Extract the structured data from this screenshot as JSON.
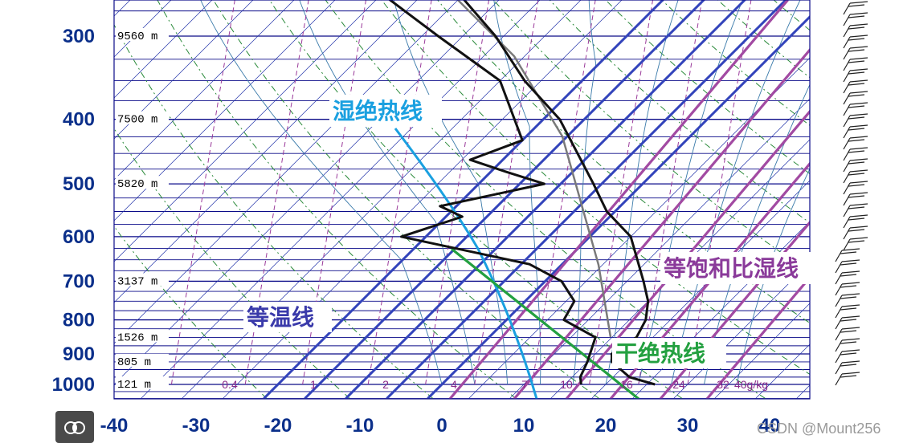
{
  "chart_data": {
    "type": "skew-t log-p",
    "y_axis": {
      "ticks": [
        300,
        400,
        500,
        600,
        700,
        800,
        900,
        1000
      ],
      "range": [
        250,
        1050
      ]
    },
    "x_axis": {
      "ticks": [
        -40,
        -30,
        -20,
        -10,
        0,
        10,
        20,
        30,
        40
      ]
    },
    "height_labels": [
      {
        "p": 300,
        "text": "9560 m"
      },
      {
        "p": 400,
        "text": "7500 m"
      },
      {
        "p": 500,
        "text": "5820 m"
      },
      {
        "p": 700,
        "text": "3137 m"
      },
      {
        "p": 850,
        "text": "1526 m"
      },
      {
        "p": 925,
        "text": "805 m"
      },
      {
        "p": 1000,
        "text": "121 m"
      }
    ],
    "mixing_ratio_labels": [
      "0.4",
      "1",
      "2",
      "4",
      "7",
      "10",
      "16",
      "24",
      "32",
      "40g/kg"
    ],
    "annotations": {
      "moist_adiabat": "湿绝热线",
      "isotherm": "等温线",
      "mixing_ratio": "等饱和比湿线",
      "dry_adiabat": "干绝热线"
    },
    "sounding": {
      "temperature": [
        {
          "p": 1000,
          "t": 26
        },
        {
          "p": 975,
          "t": 22
        },
        {
          "p": 925,
          "t": 18
        },
        {
          "p": 900,
          "t": 17
        },
        {
          "p": 850,
          "t": 18
        },
        {
          "p": 800,
          "t": 17
        },
        {
          "p": 750,
          "t": 15
        },
        {
          "p": 700,
          "t": 12
        },
        {
          "p": 600,
          "t": 5
        },
        {
          "p": 550,
          "t": -1
        },
        {
          "p": 500,
          "t": -6
        },
        {
          "p": 400,
          "t": -18
        },
        {
          "p": 350,
          "t": -27
        },
        {
          "p": 300,
          "t": -36
        },
        {
          "p": 250,
          "t": -48
        }
      ],
      "dewpoint": [
        {
          "p": 1000,
          "t": 17
        },
        {
          "p": 975,
          "t": 16
        },
        {
          "p": 925,
          "t": 15
        },
        {
          "p": 850,
          "t": 13
        },
        {
          "p": 800,
          "t": 7
        },
        {
          "p": 750,
          "t": 6
        },
        {
          "p": 700,
          "t": 2
        },
        {
          "p": 660,
          "t": -4
        },
        {
          "p": 600,
          "t": -23
        },
        {
          "p": 560,
          "t": -18
        },
        {
          "p": 540,
          "t": -22
        },
        {
          "p": 500,
          "t": -12
        },
        {
          "p": 480,
          "t": -18
        },
        {
          "p": 460,
          "t": -24
        },
        {
          "p": 430,
          "t": -20
        },
        {
          "p": 350,
          "t": -30
        },
        {
          "p": 300,
          "t": -43
        },
        {
          "p": 250,
          "t": -58
        }
      ]
    }
  },
  "colors": {
    "isotherm": "#2233aa",
    "isobar": "#0a0a88",
    "dry_adiabat": "#2a8a3a",
    "moist_adiabat": "#3a7aaa",
    "mixing_ratio": "#9a3a9a",
    "temperature": "#111111",
    "parcel": "#7a7a7a",
    "annotation_moist": "#1aa0e0",
    "annotation_isotherm": "#3a3aaa",
    "annotation_mixing": "#8a3a9a",
    "annotation_dry": "#23a040"
  },
  "watermark": "CSDN @Mount256",
  "corner_icon": "brain-icon"
}
